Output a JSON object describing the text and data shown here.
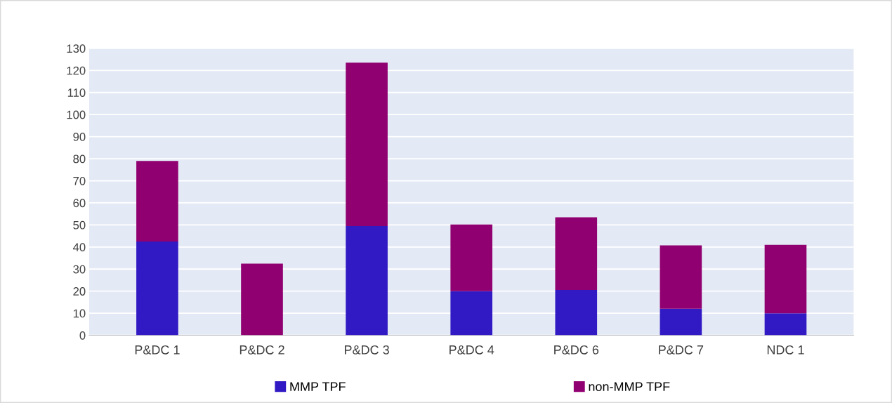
{
  "chart_data": {
    "type": "bar",
    "stacked": true,
    "categories": [
      "P&DC 1",
      "P&DC 2",
      "P&DC 3",
      "P&DC 4",
      "P&DC 6",
      "P&DC 7",
      "NDC 1"
    ],
    "series": [
      {
        "name": "MMP TPF",
        "color": "#3119c4",
        "values": [
          42.5,
          0,
          49.5,
          20,
          20.5,
          12,
          10
        ]
      },
      {
        "name": "non-MMP TPF",
        "color": "#910070",
        "values": [
          36.5,
          32.5,
          74,
          30.2,
          33,
          28.7,
          31
        ]
      }
    ],
    "ylim": [
      0,
      130
    ],
    "yticks": [
      0,
      10,
      20,
      30,
      40,
      50,
      60,
      70,
      80,
      90,
      100,
      110,
      120,
      130
    ],
    "grid": "y",
    "legend": "bottom"
  }
}
